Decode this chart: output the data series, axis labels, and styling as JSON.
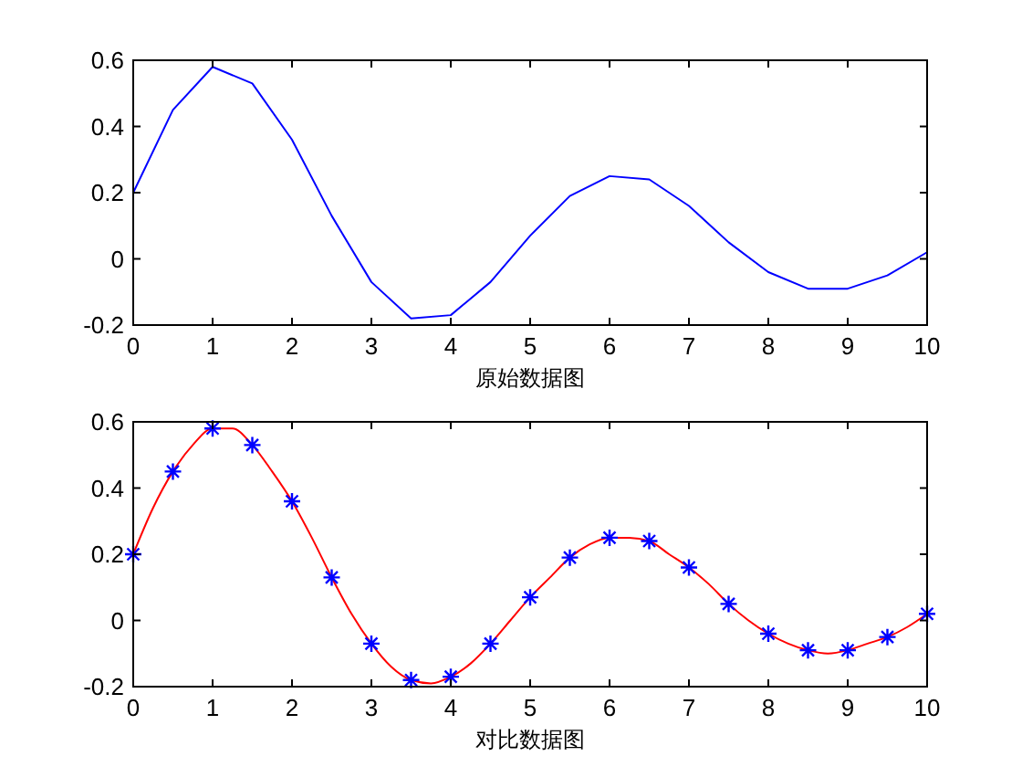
{
  "chart_data": [
    {
      "type": "line",
      "xlabel": "原始数据图",
      "x": [
        0,
        0.5,
        1,
        1.5,
        2,
        2.5,
        3,
        3.5,
        4,
        4.5,
        5,
        5.5,
        6,
        6.5,
        7,
        7.5,
        8,
        8.5,
        9,
        9.5,
        10
      ],
      "xlim": [
        0,
        10
      ],
      "xticks": [
        0,
        1,
        2,
        3,
        4,
        5,
        6,
        7,
        8,
        9,
        10
      ],
      "ylim": [
        -0.2,
        0.6
      ],
      "yticks": [
        -0.2,
        0,
        0.2,
        0.4,
        0.6
      ],
      "series": [
        {
          "color": "#0000ff",
          "values": [
            0.2,
            0.45,
            0.58,
            0.53,
            0.36,
            0.13,
            -0.07,
            -0.18,
            -0.17,
            -0.07,
            0.07,
            0.19,
            0.25,
            0.24,
            0.16,
            0.05,
            -0.04,
            -0.09,
            -0.09,
            -0.05,
            0.02
          ]
        }
      ]
    },
    {
      "type": "line",
      "xlabel": "对比数据图",
      "x": [
        0,
        0.5,
        1,
        1.5,
        2,
        2.5,
        3,
        3.5,
        4,
        4.5,
        5,
        5.5,
        6,
        6.5,
        7,
        7.5,
        8,
        8.5,
        9,
        9.5,
        10
      ],
      "xlim": [
        0,
        10
      ],
      "xticks": [
        0,
        1,
        2,
        3,
        4,
        5,
        6,
        7,
        8,
        9,
        10
      ],
      "ylim": [
        -0.2,
        0.6
      ],
      "yticks": [
        -0.2,
        0,
        0.2,
        0.4,
        0.6
      ],
      "series": [
        {
          "color": "#ff0000",
          "marker": "none",
          "x": [
            0,
            0.25,
            0.5,
            0.75,
            1,
            1.25,
            1.5,
            1.75,
            2,
            2.25,
            2.5,
            2.75,
            3,
            3.25,
            3.5,
            3.75,
            4,
            4.25,
            4.5,
            4.75,
            5,
            5.25,
            5.5,
            5.75,
            6,
            6.25,
            6.5,
            6.75,
            7,
            7.25,
            7.5,
            7.75,
            8,
            8.25,
            8.5,
            8.75,
            9,
            9.25,
            9.5,
            9.75,
            10
          ],
          "values": [
            0.2,
            0.34,
            0.45,
            0.53,
            0.58,
            0.58,
            0.53,
            0.45,
            0.36,
            0.25,
            0.13,
            0.02,
            -0.07,
            -0.14,
            -0.18,
            -0.19,
            -0.17,
            -0.13,
            -0.07,
            0.0,
            0.07,
            0.13,
            0.19,
            0.23,
            0.25,
            0.25,
            0.24,
            0.2,
            0.16,
            0.11,
            0.05,
            0.0,
            -0.04,
            -0.07,
            -0.09,
            -0.1,
            -0.09,
            -0.07,
            -0.05,
            -0.02,
            0.02
          ]
        },
        {
          "type": "scatter",
          "color": "#0000ff",
          "marker": "cross",
          "values": [
            0.2,
            0.45,
            0.58,
            0.53,
            0.36,
            0.13,
            -0.07,
            -0.18,
            -0.17,
            -0.07,
            0.07,
            0.19,
            0.25,
            0.24,
            0.16,
            0.05,
            -0.04,
            -0.09,
            -0.09,
            -0.05,
            0.02
          ]
        }
      ]
    }
  ]
}
